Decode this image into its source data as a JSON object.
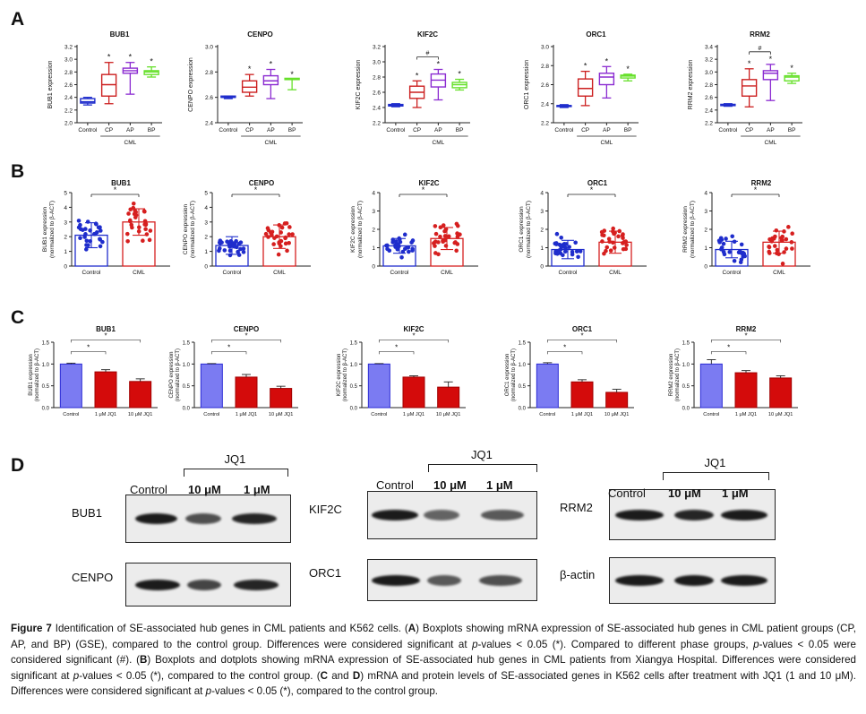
{
  "panels": {
    "A": {
      "letter": "A",
      "group_label": "CML",
      "ylabel_suffix": " expression",
      "sig_star": "*",
      "sig_hash": "#",
      "categories": [
        "Control",
        "CP",
        "AP",
        "BP"
      ],
      "colors": [
        "#1f2dcc",
        "#cc1f1f",
        "#8b2bd1",
        "#66e02a"
      ],
      "genes": [
        {
          "name": "BUB1",
          "yticks": [
            "2.0",
            "2.2",
            "2.4",
            "2.6",
            "2.8",
            "3.0",
            "3.2"
          ],
          "ylim": [
            2.0,
            3.2
          ],
          "boxes": [
            [
              2.28,
              2.31,
              2.33,
              2.38,
              2.4
            ],
            [
              2.3,
              2.42,
              2.6,
              2.76,
              2.95
            ],
            [
              2.45,
              2.78,
              2.82,
              2.86,
              2.95
            ],
            [
              2.72,
              2.76,
              2.8,
              2.82,
              2.88
            ]
          ],
          "stars": [
            false,
            true,
            true,
            true
          ],
          "hash": false
        },
        {
          "name": "CENPO",
          "yticks": [
            "2.4",
            "2.6",
            "2.8",
            "3.0"
          ],
          "ylim": [
            2.4,
            3.0
          ],
          "boxes": [
            [
              2.59,
              2.6,
              2.6,
              2.61,
              2.61
            ],
            [
              2.61,
              2.64,
              2.68,
              2.73,
              2.78
            ],
            [
              2.59,
              2.7,
              2.73,
              2.77,
              2.82
            ],
            [
              2.66,
              2.74,
              2.74,
              2.75,
              2.74
            ]
          ],
          "stars": [
            false,
            true,
            true,
            true
          ],
          "hash": false
        },
        {
          "name": "KIF2C",
          "yticks": [
            "2.2",
            "2.4",
            "2.6",
            "2.8",
            "3.0",
            "3.2"
          ],
          "ylim": [
            2.2,
            3.2
          ],
          "boxes": [
            [
              2.41,
              2.42,
              2.43,
              2.44,
              2.45
            ],
            [
              2.4,
              2.52,
              2.6,
              2.68,
              2.75
            ],
            [
              2.5,
              2.67,
              2.76,
              2.84,
              2.9
            ],
            [
              2.63,
              2.66,
              2.7,
              2.73,
              2.77
            ]
          ],
          "stars": [
            false,
            true,
            true,
            true
          ],
          "hash": true
        },
        {
          "name": "ORC1",
          "yticks": [
            "2.2",
            "2.4",
            "2.6",
            "2.8",
            "3.0"
          ],
          "ylim": [
            2.2,
            3.0
          ],
          "boxes": [
            [
              2.36,
              2.37,
              2.38,
              2.38,
              2.39
            ],
            [
              2.38,
              2.48,
              2.56,
              2.66,
              2.74
            ],
            [
              2.46,
              2.6,
              2.68,
              2.72,
              2.79
            ],
            [
              2.64,
              2.67,
              2.69,
              2.7,
              2.71
            ]
          ],
          "stars": [
            false,
            true,
            true,
            true
          ],
          "hash": false
        },
        {
          "name": "RRM2",
          "yticks": [
            "2.2",
            "2.4",
            "2.6",
            "2.8",
            "3.0",
            "3.2",
            "3.4"
          ],
          "ylim": [
            2.2,
            3.4
          ],
          "boxes": [
            [
              2.46,
              2.47,
              2.48,
              2.49,
              2.5
            ],
            [
              2.45,
              2.62,
              2.78,
              2.88,
              3.05
            ],
            [
              2.55,
              2.88,
              2.98,
              3.02,
              3.12
            ],
            [
              2.82,
              2.86,
              2.92,
              2.94,
              2.98
            ]
          ],
          "stars": [
            false,
            true,
            true,
            true
          ],
          "hash": true
        }
      ]
    },
    "B": {
      "letter": "B",
      "categories": [
        "Control",
        "CML"
      ],
      "ylabel_line1_suffix": " expression",
      "ylabel_line2": "(normalized to β-ACT)",
      "sig_star": "*",
      "colors": [
        "#1f2dcc",
        "#d61f1f"
      ],
      "genes": [
        {
          "name": "BUB1",
          "ylabel_name": "BUB1",
          "yticks": [
            "0",
            "1",
            "2",
            "3",
            "4",
            "5"
          ],
          "ymax": 5,
          "means": [
            2.1,
            3.0
          ],
          "sd": [
            0.85,
            0.9
          ]
        },
        {
          "name": "CENPO",
          "ylabel_name": "CENPO",
          "yticks": [
            "0",
            "1",
            "2",
            "3",
            "4",
            "5"
          ],
          "ymax": 5,
          "means": [
            1.4,
            2.0
          ],
          "sd": [
            0.6,
            0.8
          ]
        },
        {
          "name": "KIF2C",
          "ylabel_name": "KIF2C",
          "yticks": [
            "0",
            "1",
            "2",
            "3",
            "4"
          ],
          "ymax": 4,
          "means": [
            1.1,
            1.5
          ],
          "sd": [
            0.4,
            0.6
          ]
        },
        {
          "name": "ORC1",
          "ylabel_name": "ORC1",
          "yticks": [
            "0",
            "1",
            "2",
            "3",
            "4"
          ],
          "ymax": 4,
          "means": [
            0.9,
            1.3
          ],
          "sd": [
            0.5,
            0.6
          ]
        },
        {
          "name": "RRM2",
          "ylabel_name": "RRM2",
          "yticks": [
            "0",
            "1",
            "2",
            "3",
            "4"
          ],
          "ymax": 4,
          "means": [
            0.9,
            1.3
          ],
          "sd": [
            0.45,
            0.6
          ]
        }
      ]
    },
    "C": {
      "letter": "C",
      "categories": [
        "Control",
        "1 μM JQ1",
        "10 μM JQ1"
      ],
      "ylabel_line1_suffix": " expression",
      "ylabel_line2": "(normalized to β-ACT)",
      "sig_star": "*",
      "yticks": [
        "0.0",
        "0.5",
        "1.0",
        "1.5"
      ],
      "ymax": 1.5,
      "colors": [
        "#7b7bf2",
        "#d40b0b",
        "#d40b0b"
      ],
      "genes": [
        {
          "name": "BUB1",
          "values": [
            1.0,
            0.82,
            0.6
          ],
          "err": [
            0.02,
            0.05,
            0.06
          ]
        },
        {
          "name": "CENPO",
          "values": [
            1.0,
            0.7,
            0.44
          ],
          "err": [
            0.01,
            0.06,
            0.05
          ]
        },
        {
          "name": "KIF2C",
          "values": [
            1.0,
            0.7,
            0.47
          ],
          "err": [
            0.01,
            0.03,
            0.12
          ]
        },
        {
          "name": "ORC1",
          "values": [
            1.0,
            0.59,
            0.35
          ],
          "err": [
            0.03,
            0.05,
            0.07
          ]
        },
        {
          "name": "RRM2",
          "values": [
            1.0,
            0.8,
            0.68
          ],
          "err": [
            0.1,
            0.05,
            0.05
          ]
        }
      ]
    },
    "D": {
      "letter": "D",
      "treatment": "JQ1",
      "lanes": [
        "Control",
        "10 μM",
        "1 μM"
      ],
      "blots": [
        {
          "left": "BUB1",
          "left_bottom": "CENPO"
        },
        {
          "left": "KIF2C",
          "left_bottom": "ORC1"
        },
        {
          "left": "RRM2",
          "left_bottom": "β-actin"
        }
      ]
    }
  },
  "caption": {
    "label": "Figure 7",
    "s1": " Identification of SE-associated hub genes in CML patients and K562 cells. (",
    "A": "A",
    "s2": ") Boxplots showing mRNA expression of SE-associated hub genes in CML patient groups (CP, AP, and BP) (GSE), compared to the control group. Differences were considered significant at ",
    "p1": "p",
    "s3": "-values < 0.05 (*). Compared to different phase groups, ",
    "p2": "p",
    "s4": "-values < 0.05 were considered significant (#). (",
    "B": "B",
    "s5": ") Boxplots and dotplots showing mRNA expression of SE-associated hub genes in CML patients from Xiangya Hospital. Differences were considered significant at ",
    "p3": "p",
    "s6": "-values < 0.05 (*), compared to the control group. (",
    "C": "C",
    "s7": " and ",
    "D": "D",
    "s8": ") mRNA and protein levels of SE-associated genes in K562 cells after treatment with JQ1 (1 and 10 ",
    "mu": "μM",
    "s9": "). Differences were considered significant at ",
    "p4": "p",
    "s10": "-values < 0.05 (*), compared to the control group."
  }
}
